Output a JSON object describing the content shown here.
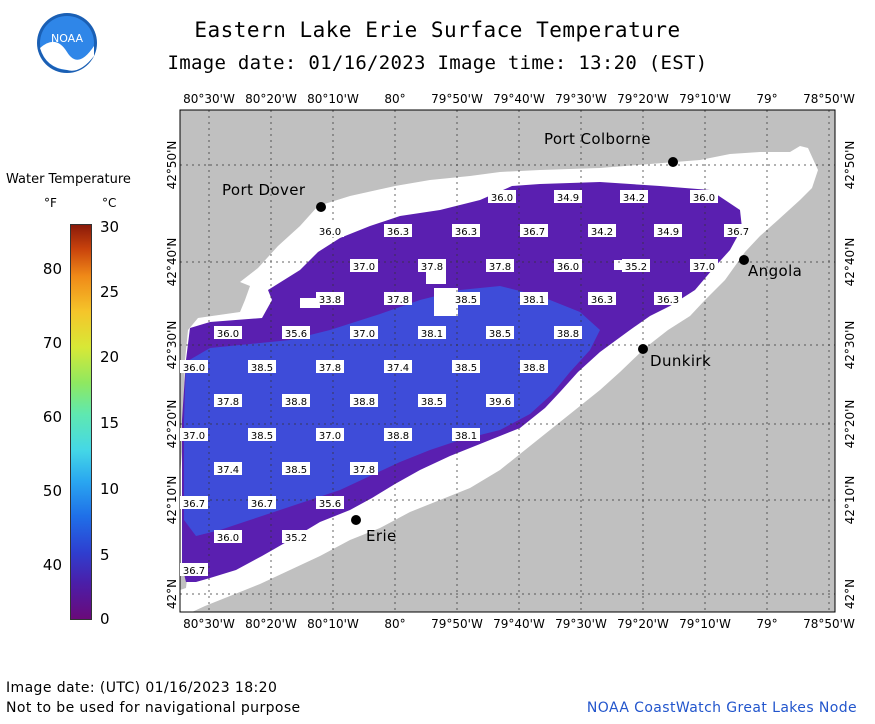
{
  "title": "Eastern Lake Erie Surface Temperature",
  "subtitle": "Image date: 01/16/2023    Image time: 13:20 (EST)",
  "logo_text": "NOAA",
  "legend": {
    "title": "Water Temperature",
    "unit_f": "°F",
    "unit_c": "°C",
    "ticks_f": [
      "80",
      "70",
      "60",
      "50",
      "40"
    ],
    "ticks_c": [
      "30",
      "25",
      "20",
      "15",
      "10",
      "5",
      "0"
    ]
  },
  "longitude_labels": [
    "80°30'W",
    "80°20'W",
    "80°10'W",
    "80°",
    "79°50'W",
    "79°40'W",
    "79°30'W",
    "79°20'W",
    "79°10'W",
    "79°",
    "78°50'W"
  ],
  "latitude_labels": [
    "42°50'N",
    "42°40'N",
    "42°30'N",
    "42°20'N",
    "42°10'N",
    "42°N"
  ],
  "cities": [
    {
      "name": "Port Colborne"
    },
    {
      "name": "Port Dover"
    },
    {
      "name": "Angola"
    },
    {
      "name": "Dunkirk"
    },
    {
      "name": "Erie"
    }
  ],
  "temperature_labels": [
    "36.0",
    "34.9",
    "34.2",
    "36.0",
    "36.0",
    "36.3",
    "36.3",
    "36.7",
    "34.2",
    "34.9",
    "36.7",
    "37.0",
    "37.8",
    "37.8",
    "36.0",
    "35.2",
    "37.0",
    "33.8",
    "37.8",
    "38.5",
    "38.1",
    "36.3",
    "36.3",
    "36.0",
    "35.6",
    "37.0",
    "38.1",
    "38.5",
    "38.8",
    "36.0",
    "38.5",
    "37.8",
    "37.4",
    "38.5",
    "38.8",
    "37.8",
    "38.8",
    "38.8",
    "38.5",
    "39.6",
    "37.0",
    "38.5",
    "37.0",
    "38.8",
    "38.1",
    "37.4",
    "38.5",
    "37.8",
    "36.7",
    "36.7",
    "35.6",
    "36.0",
    "35.2",
    "36.7"
  ],
  "footer": {
    "utc_date": "Image date: (UTC) 01/16/2023   18:20",
    "disclaimer": "Not to be used for navigational purpose",
    "credit": "NOAA CoastWatch Great Lakes Node"
  },
  "colors": {
    "land": "#c0c0c0",
    "ice_shore": "#ffffff",
    "water_cold": "#5a1fb0",
    "water_warm": "#3a55e0"
  }
}
